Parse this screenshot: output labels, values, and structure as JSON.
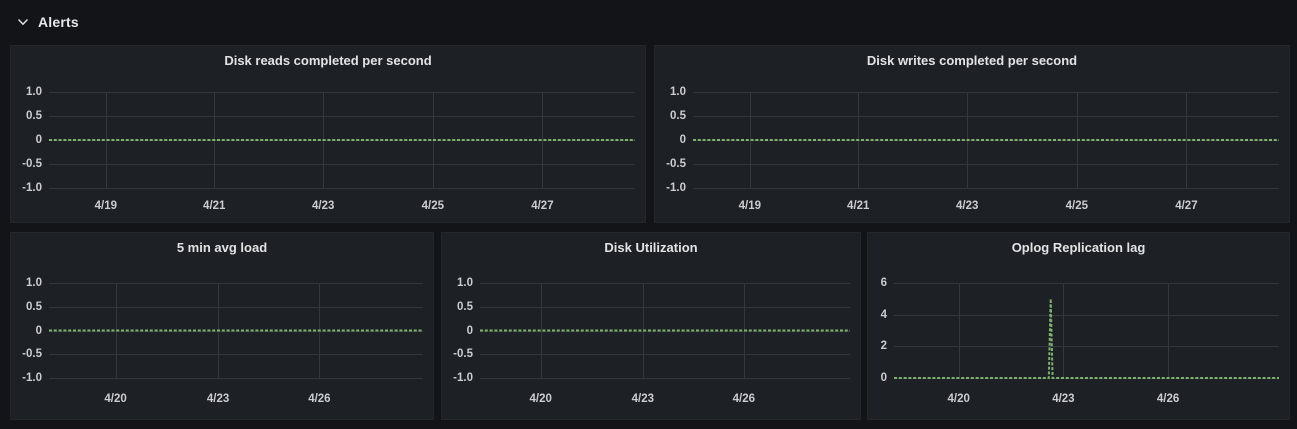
{
  "row_header": {
    "title": "Alerts",
    "collapse_icon": "chevron-down"
  },
  "colors": {
    "page_bg": "#121418",
    "panel_bg": "#1d2024",
    "grid_line": "#34373c",
    "axis_text": "#cbcdd1",
    "title_text": "#e2e3e5",
    "series_green": "#7eb26d"
  },
  "chart_data": [
    {
      "type": "line",
      "title": "Disk reads completed per second",
      "ylim": [
        -1.0,
        1.0
      ],
      "grid": true,
      "y_ticks": [
        {
          "label": "1.0",
          "value": 1.0
        },
        {
          "label": "0.5",
          "value": 0.5
        },
        {
          "label": "0",
          "value": 0
        },
        {
          "label": "-0.5",
          "value": -0.5
        },
        {
          "label": "-1.0",
          "value": -1.0
        }
      ],
      "x_ticks": [
        {
          "label": "4/19",
          "f": 0.097
        },
        {
          "label": "4/21",
          "f": 0.282
        },
        {
          "label": "4/23",
          "f": 0.468
        },
        {
          "label": "4/25",
          "f": 0.655
        },
        {
          "label": "4/27",
          "f": 0.842
        }
      ],
      "series": [
        {
          "name": "disk reads",
          "color": "#7eb26d",
          "points": [
            {
              "xf": 0,
              "y": 0
            },
            {
              "xf": 1,
              "y": 0
            }
          ]
        }
      ]
    },
    {
      "type": "line",
      "title": "Disk writes completed per second",
      "ylim": [
        -1.0,
        1.0
      ],
      "grid": true,
      "y_ticks": [
        {
          "label": "1.0",
          "value": 1.0
        },
        {
          "label": "0.5",
          "value": 0.5
        },
        {
          "label": "0",
          "value": 0
        },
        {
          "label": "-0.5",
          "value": -0.5
        },
        {
          "label": "-1.0",
          "value": -1.0
        }
      ],
      "x_ticks": [
        {
          "label": "4/19",
          "f": 0.097
        },
        {
          "label": "4/21",
          "f": 0.282
        },
        {
          "label": "4/23",
          "f": 0.468
        },
        {
          "label": "4/25",
          "f": 0.655
        },
        {
          "label": "4/27",
          "f": 0.842
        }
      ],
      "series": [
        {
          "name": "disk writes",
          "color": "#7eb26d",
          "points": [
            {
              "xf": 0,
              "y": 0
            },
            {
              "xf": 1,
              "y": 0
            }
          ]
        }
      ]
    },
    {
      "type": "line",
      "title": "5 min avg load",
      "ylim": [
        -1.0,
        1.0
      ],
      "grid": true,
      "y_ticks": [
        {
          "label": "1.0",
          "value": 1.0
        },
        {
          "label": "0.5",
          "value": 0.5
        },
        {
          "label": "0",
          "value": 0
        },
        {
          "label": "-0.5",
          "value": -0.5
        },
        {
          "label": "-1.0",
          "value": -1.0
        }
      ],
      "x_ticks": [
        {
          "label": "4/20",
          "f": 0.178
        },
        {
          "label": "4/23",
          "f": 0.452
        },
        {
          "label": "4/26",
          "f": 0.723
        }
      ],
      "series": [
        {
          "name": "5 min avg load",
          "color": "#7eb26d",
          "points": [
            {
              "xf": 0,
              "y": 0
            },
            {
              "xf": 1,
              "y": 0
            }
          ]
        }
      ]
    },
    {
      "type": "line",
      "title": "Disk Utilization",
      "ylim": [
        -1.0,
        1.0
      ],
      "grid": true,
      "y_ticks": [
        {
          "label": "1.0",
          "value": 1.0
        },
        {
          "label": "0.5",
          "value": 0.5
        },
        {
          "label": "0",
          "value": 0
        },
        {
          "label": "-0.5",
          "value": -0.5
        },
        {
          "label": "-1.0",
          "value": -1.0
        }
      ],
      "x_ticks": [
        {
          "label": "4/20",
          "f": 0.164
        },
        {
          "label": "4/23",
          "f": 0.44
        },
        {
          "label": "4/26",
          "f": 0.713
        }
      ],
      "series": [
        {
          "name": "disk utilization",
          "color": "#7eb26d",
          "points": [
            {
              "xf": 0,
              "y": 0
            },
            {
              "xf": 1,
              "y": 0
            }
          ]
        }
      ]
    },
    {
      "type": "line",
      "title": "Oplog Replication lag",
      "ylim": [
        0,
        6
      ],
      "grid": true,
      "y_ticks": [
        {
          "label": "6",
          "value": 6
        },
        {
          "label": "4",
          "value": 4
        },
        {
          "label": "2",
          "value": 2
        },
        {
          "label": "0",
          "value": 0
        }
      ],
      "x_ticks": [
        {
          "label": "4/20",
          "f": 0.168
        },
        {
          "label": "4/23",
          "f": 0.44
        },
        {
          "label": "4/26",
          "f": 0.712
        }
      ],
      "series": [
        {
          "name": "oplog replication lag",
          "color": "#7eb26d",
          "points": [
            {
              "xf": 0,
              "y": 0
            },
            {
              "xf": 0.402,
              "y": 0
            },
            {
              "xf": 0.407,
              "y": 5
            },
            {
              "xf": 0.412,
              "y": 0
            },
            {
              "xf": 1,
              "y": 0
            }
          ],
          "spike": {
            "near_label": "4/23",
            "peak": 5
          }
        }
      ]
    }
  ]
}
